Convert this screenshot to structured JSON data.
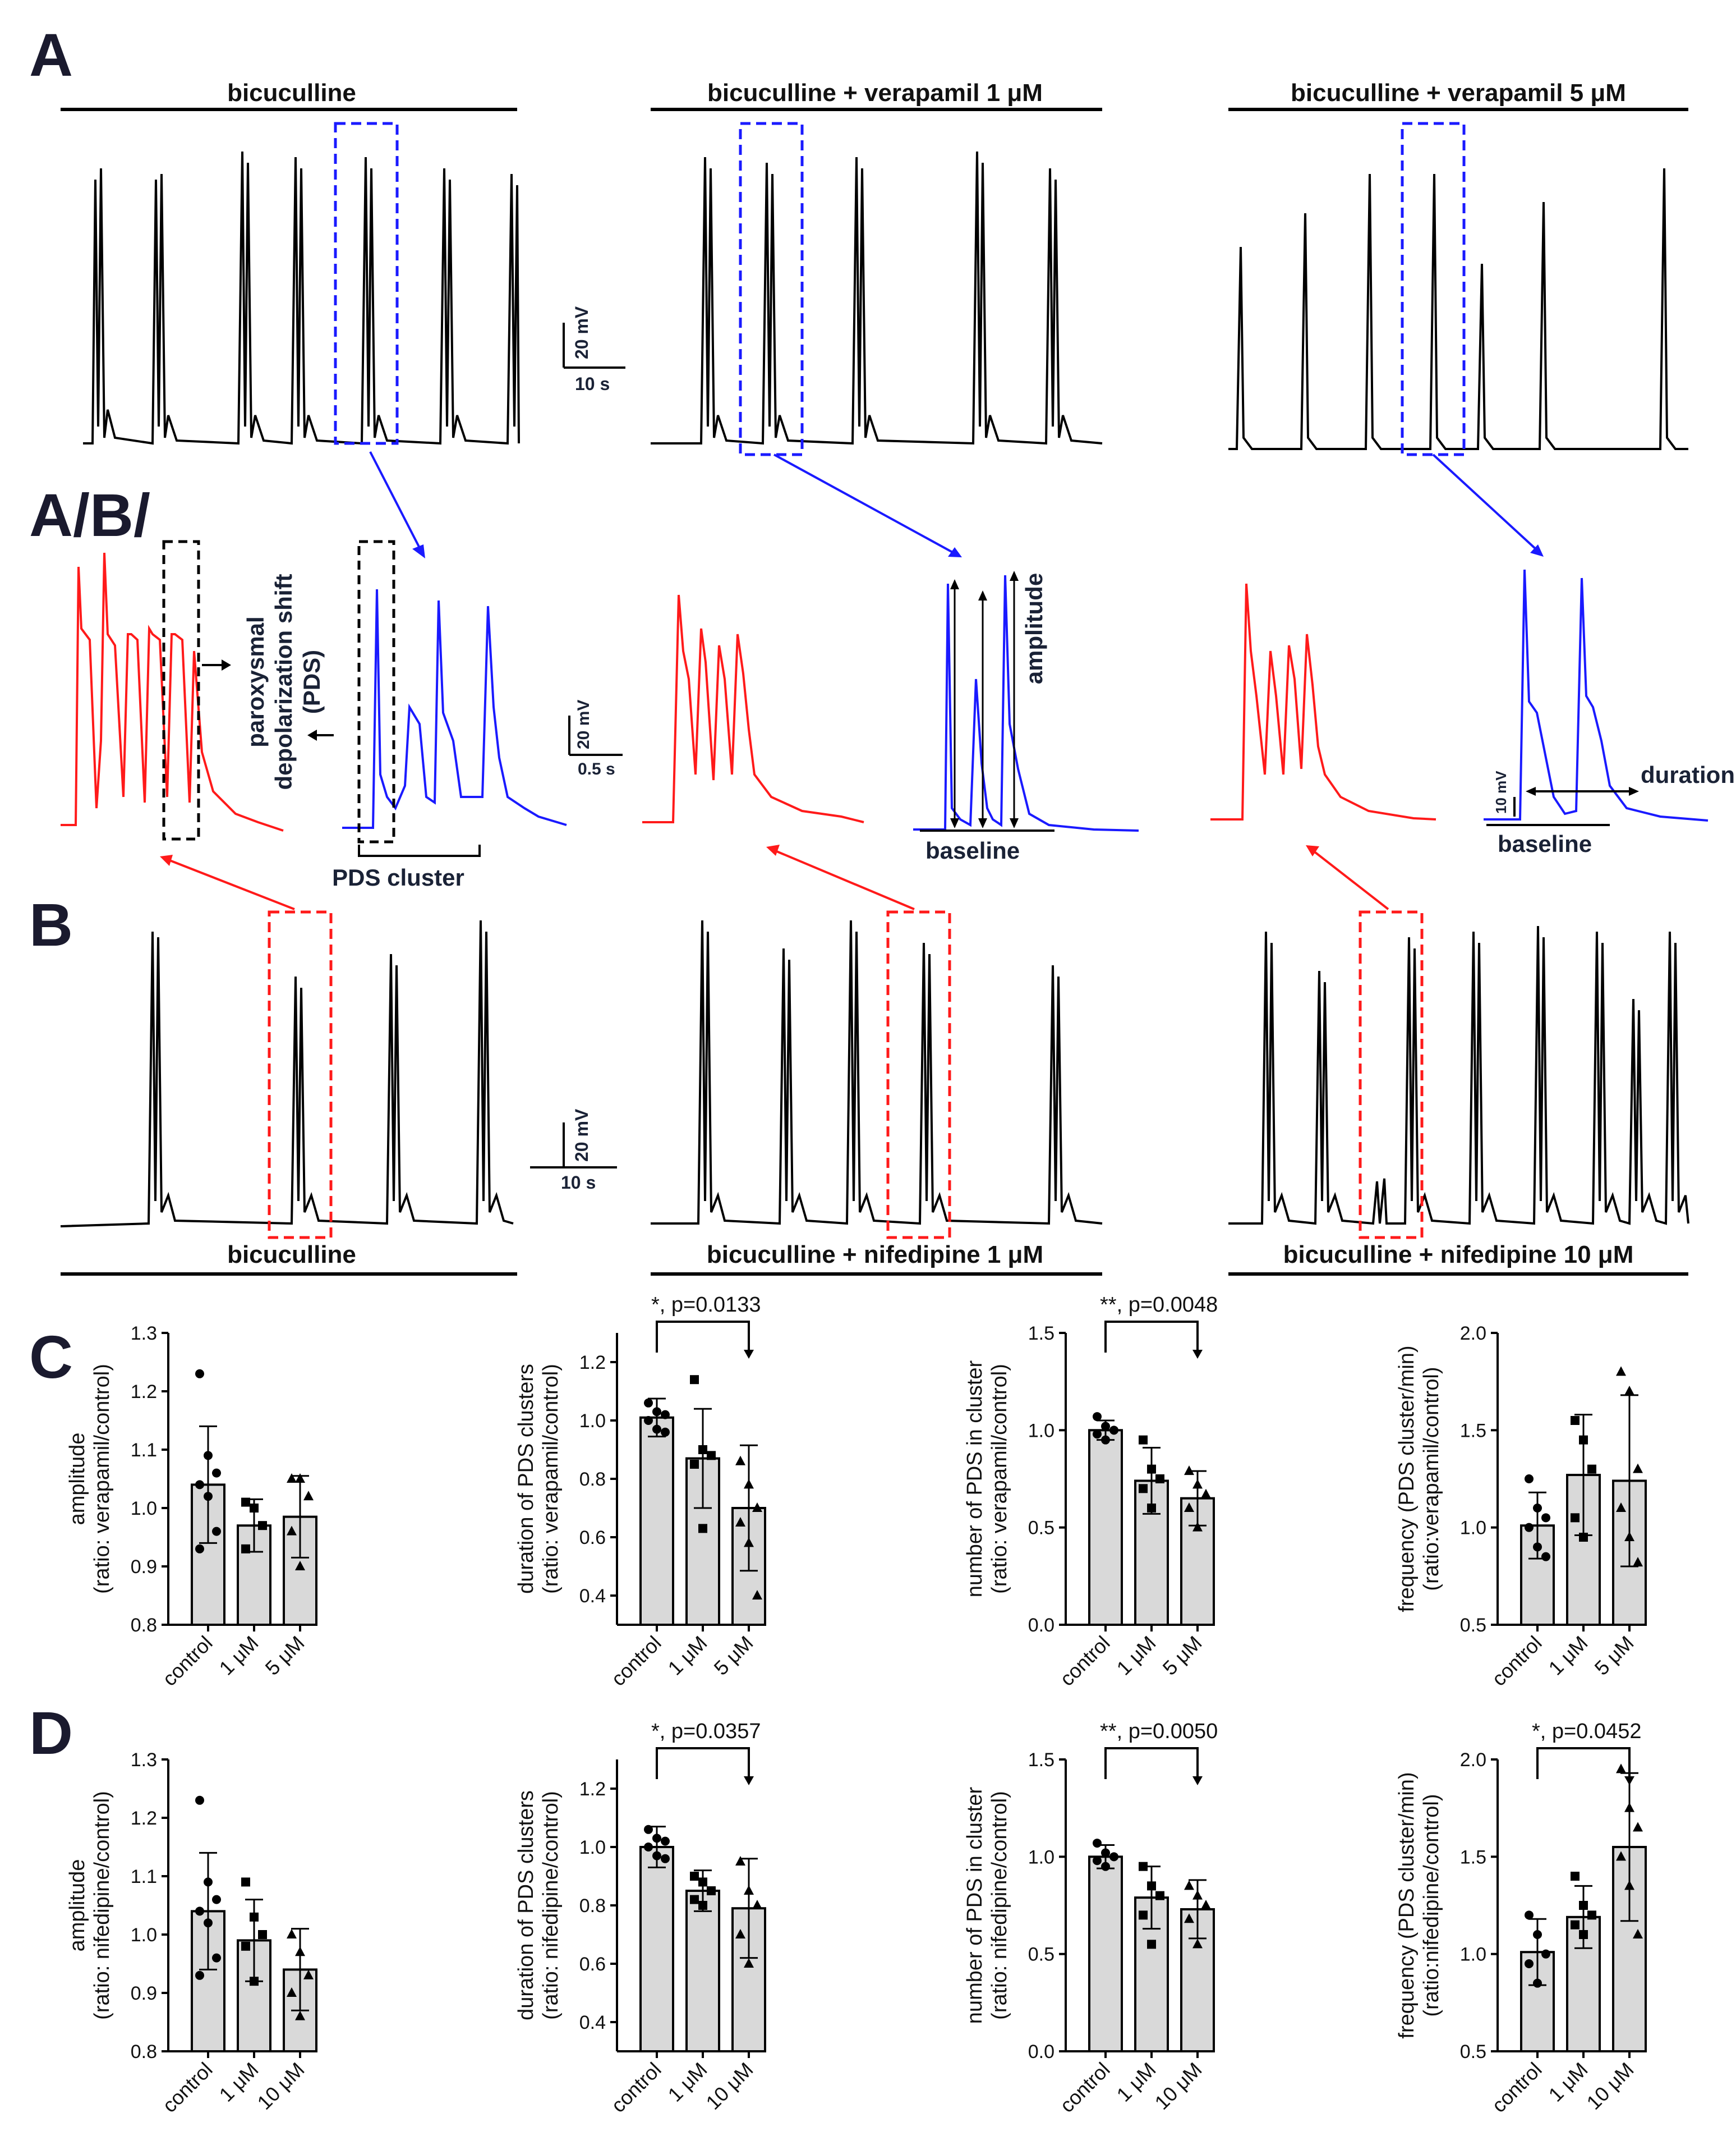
{
  "panel_labels": {
    "a": "A",
    "ab": "A/B/",
    "b": "B",
    "c": "C",
    "d": "D"
  },
  "traces": {
    "row_a_conditions": [
      "bicuculline",
      "bicuculline + verapamil 1 μM",
      "bicuculline + verapamil 5 μM"
    ],
    "row_b_conditions": [
      "bicuculline",
      "bicuculline + nifedipine 1 μM",
      "bicuculline + nifedipine 10 μM"
    ],
    "scale_a": {
      "v": "20 mV",
      "t": "10 s"
    },
    "scale_ab": {
      "v": "20 mV",
      "t": "0.5 s"
    },
    "scale_b": {
      "v": "20 mV",
      "t": "10 s"
    },
    "annotations": {
      "pds_line1": "paroxysmal",
      "pds_line2": "depolarization shift",
      "pds_line3": "(PDS)",
      "pds_cluster": "PDS cluster",
      "amplitude": "amplitude",
      "baseline_1": "baseline",
      "baseline_2": "baseline",
      "duration": "duration",
      "ten_mv": "10 mV"
    },
    "colors": {
      "trace": "#000000",
      "zoom_a": "#1a1aff",
      "zoom_b": "#ff1a1a",
      "pds_box": "#000000"
    }
  },
  "chart_data": [
    {
      "id": "c1",
      "type": "bar",
      "categories": [
        "control",
        "1 μM",
        "5 μM"
      ],
      "values": [
        1.04,
        0.97,
        0.985
      ],
      "errors": [
        0.1,
        0.045,
        0.07
      ],
      "ylabel": [
        "amplitude",
        "(ratio: verapamil/control)"
      ],
      "ylim": [
        0.8,
        1.3
      ],
      "ticks": [
        "0.8",
        "0.9",
        "1.0",
        "1.1",
        "1.2",
        "1.3"
      ],
      "points": [
        [
          1.23,
          1.09,
          1.06,
          1.04,
          1.02,
          0.96,
          0.93
        ],
        [
          1.01,
          1.0,
          0.97,
          0.93
        ],
        [
          1.05,
          1.05,
          1.02,
          0.96,
          0.9
        ]
      ],
      "sig": null
    },
    {
      "id": "c2",
      "type": "bar",
      "categories": [
        "control",
        "1 μM",
        "5 μM"
      ],
      "values": [
        1.01,
        0.87,
        0.7
      ],
      "errors": [
        0.065,
        0.17,
        0.215
      ],
      "ylabel": [
        "duration of PDS clusters",
        "(ratio: verapamil/control)"
      ],
      "ylim": [
        0.3,
        1.3
      ],
      "ticks": [
        "0.4",
        "0.6",
        "0.8",
        "1.0",
        "1.2"
      ],
      "points": [
        [
          1.06,
          1.03,
          1.02,
          1.0,
          0.97,
          0.96
        ],
        [
          1.14,
          0.9,
          0.88,
          0.85,
          0.63
        ],
        [
          0.86,
          0.78,
          0.7,
          0.65,
          0.58,
          0.4
        ]
      ],
      "sig": "*, p=0.0133"
    },
    {
      "id": "c3",
      "type": "bar",
      "categories": [
        "control",
        "1 μM",
        "5 μM"
      ],
      "values": [
        1.0,
        0.74,
        0.65
      ],
      "errors": [
        0.05,
        0.17,
        0.14
      ],
      "ylabel": [
        "number of PDS in cluster",
        "(ratio: verapamil/control)"
      ],
      "ylim": [
        0.0,
        1.5
      ],
      "ticks": [
        "0.0",
        "0.5",
        "1.0",
        "1.5"
      ],
      "points": [
        [
          1.07,
          1.02,
          1.0,
          0.98,
          0.95
        ],
        [
          0.95,
          0.8,
          0.75,
          0.7,
          0.6
        ],
        [
          0.79,
          0.72,
          0.67,
          0.6,
          0.5
        ]
      ],
      "sig": "**, p=0.0048"
    },
    {
      "id": "c4",
      "type": "bar",
      "categories": [
        "control",
        "1 μM",
        "5 μM"
      ],
      "values": [
        1.01,
        1.27,
        1.24
      ],
      "errors": [
        0.17,
        0.31,
        0.44
      ],
      "ylabel": [
        "frequency (PDS cluster/min)",
        "(ratio:verapamil/control)"
      ],
      "ylim": [
        0.5,
        2.0
      ],
      "ticks": [
        "0.5",
        "1.0",
        "1.5",
        "2.0"
      ],
      "points": [
        [
          1.25,
          1.1,
          1.05,
          1.0,
          0.9,
          0.85
        ],
        [
          1.55,
          1.45,
          1.3,
          1.05,
          0.95
        ],
        [
          1.8,
          1.7,
          1.3,
          1.1,
          0.95,
          0.82
        ]
      ],
      "sig": null
    },
    {
      "id": "d1",
      "type": "bar",
      "categories": [
        "control",
        "1 μM",
        "10 μM"
      ],
      "values": [
        1.04,
        0.99,
        0.94
      ],
      "errors": [
        0.1,
        0.07,
        0.07
      ],
      "ylabel": [
        "amplitude",
        "(ratio: nifedipine/control)"
      ],
      "ylim": [
        0.8,
        1.3
      ],
      "ticks": [
        "0.8",
        "0.9",
        "1.0",
        "1.1",
        "1.2",
        "1.3"
      ],
      "points": [
        [
          1.23,
          1.09,
          1.06,
          1.04,
          1.02,
          0.96,
          0.93
        ],
        [
          1.09,
          1.03,
          1.0,
          0.98,
          0.92
        ],
        [
          1.0,
          0.97,
          0.93,
          0.9,
          0.86
        ]
      ],
      "sig": null
    },
    {
      "id": "d2",
      "type": "bar",
      "categories": [
        "control",
        "1 μM",
        "10 μM"
      ],
      "values": [
        1.0,
        0.85,
        0.79
      ],
      "errors": [
        0.07,
        0.07,
        0.17
      ],
      "ylabel": [
        "duration of PDS clusters",
        "(ratio: nifedipine/control)"
      ],
      "ylim": [
        0.3,
        1.3
      ],
      "ticks": [
        "0.4",
        "0.6",
        "0.8",
        "1.0",
        "1.2"
      ],
      "points": [
        [
          1.06,
          1.03,
          1.02,
          1.0,
          0.97,
          0.96
        ],
        [
          0.9,
          0.88,
          0.85,
          0.82,
          0.8
        ],
        [
          0.95,
          0.85,
          0.8,
          0.7,
          0.6
        ]
      ],
      "sig": "*, p=0.0357"
    },
    {
      "id": "d3",
      "type": "bar",
      "categories": [
        "control",
        "1 μM",
        "10 μM"
      ],
      "values": [
        1.0,
        0.79,
        0.73
      ],
      "errors": [
        0.06,
        0.16,
        0.15
      ],
      "ylabel": [
        "number of PDS in cluster",
        "(ratio: nifedipine/control)"
      ],
      "ylim": [
        0.0,
        1.5
      ],
      "ticks": [
        "0.0",
        "0.5",
        "1.0",
        "1.5"
      ],
      "points": [
        [
          1.07,
          1.02,
          1.0,
          0.98,
          0.95
        ],
        [
          0.95,
          0.85,
          0.8,
          0.7,
          0.55
        ],
        [
          0.85,
          0.8,
          0.75,
          0.68,
          0.55
        ]
      ],
      "sig": "**, p=0.0050"
    },
    {
      "id": "d4",
      "type": "bar",
      "categories": [
        "control",
        "1 μM",
        "10 μM"
      ],
      "values": [
        1.01,
        1.19,
        1.55
      ],
      "errors": [
        0.17,
        0.16,
        0.38
      ],
      "ylabel": [
        "frequency (PDS cluster/min)",
        "(ratio:nifedipine/control)"
      ],
      "ylim": [
        0.5,
        2.0
      ],
      "ticks": [
        "0.5",
        "1.0",
        "1.5",
        "2.0"
      ],
      "points": [
        [
          1.2,
          1.1,
          1.0,
          0.95,
          0.85
        ],
        [
          1.4,
          1.25,
          1.2,
          1.15,
          1.1
        ],
        [
          1.95,
          1.75,
          1.65,
          1.5,
          1.35,
          1.1
        ]
      ],
      "sig": "*, p=0.0452"
    }
  ]
}
